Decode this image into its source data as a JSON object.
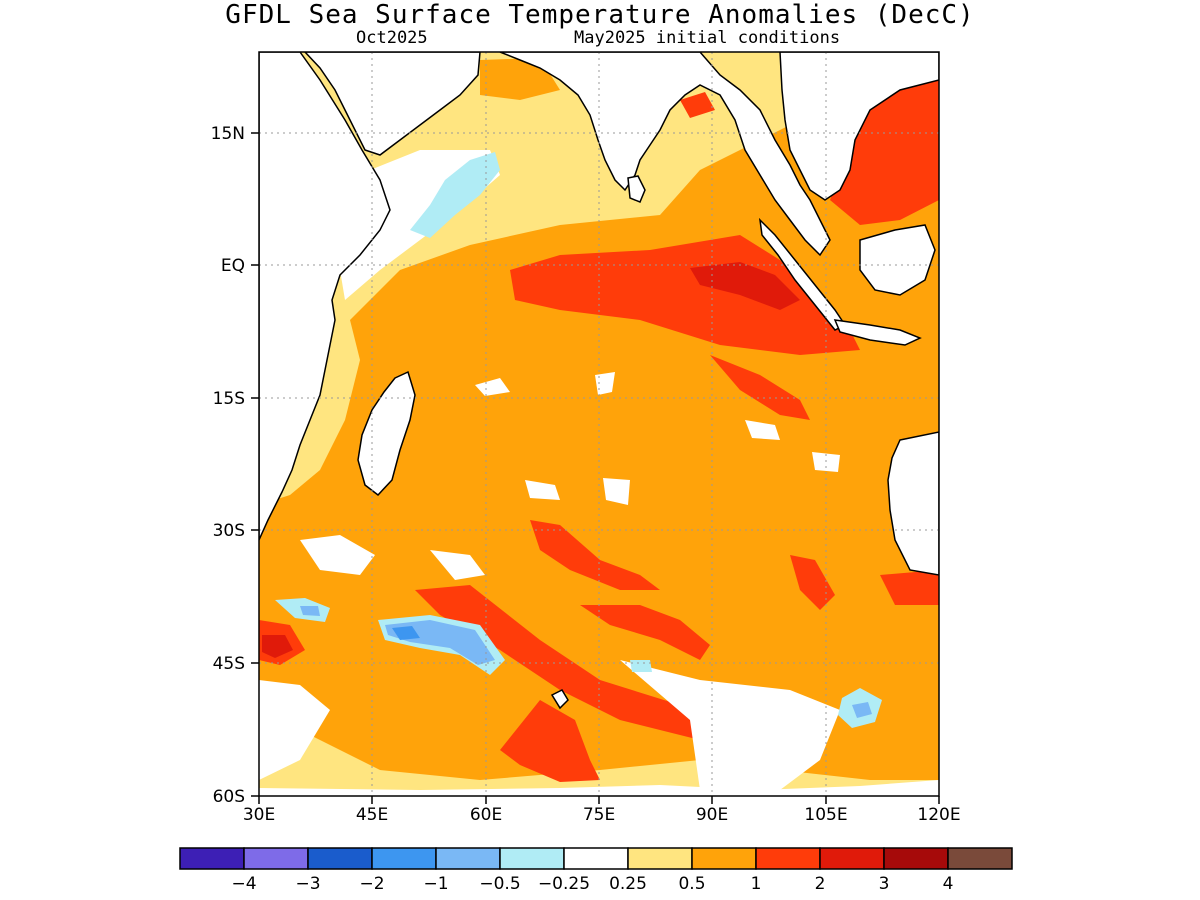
{
  "title": "GFDL Sea Surface Temperature Anomalies (DecC)",
  "subtitle_left": "Oct2025",
  "subtitle_right": "May2025 initial conditions",
  "map": {
    "lon_range": [
      30,
      120
    ],
    "lat_range": [
      -60,
      22
    ],
    "lon_ticks": [
      {
        "value": 30,
        "label": "30E"
      },
      {
        "value": 45,
        "label": "45E"
      },
      {
        "value": 60,
        "label": "60E"
      },
      {
        "value": 75,
        "label": "75E"
      },
      {
        "value": 90,
        "label": "90E"
      },
      {
        "value": 105,
        "label": "105E"
      },
      {
        "value": 120,
        "label": "120E"
      }
    ],
    "lat_ticks": [
      {
        "value": 15,
        "label": "15N"
      },
      {
        "value": 0,
        "label": "EQ"
      },
      {
        "value": -15,
        "label": "15S"
      },
      {
        "value": -30,
        "label": "30S"
      },
      {
        "value": -45,
        "label": "45S"
      },
      {
        "value": -60,
        "label": "60S"
      }
    ],
    "grid": "dotted"
  },
  "colorbar": {
    "colors": [
      "#3d1fb5",
      "#7e6be8",
      "#1a5ccc",
      "#3d96f0",
      "#7ab8f5",
      "#b0ecf5",
      "#ffffff",
      "#ffe580",
      "#ffa30a",
      "#ff3c0a",
      "#e01a0a",
      "#a60a0a",
      "#7a4a3a"
    ],
    "labels": [
      "−4",
      "−3",
      "−2",
      "−1",
      "−0.5",
      "−0.25",
      "0.25",
      "0.5",
      "1",
      "2",
      "3",
      "4"
    ]
  }
}
